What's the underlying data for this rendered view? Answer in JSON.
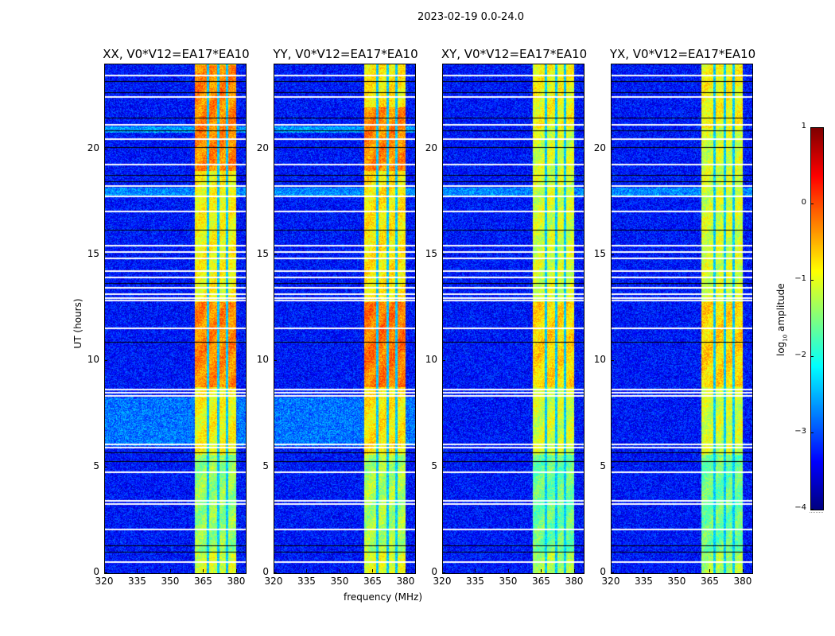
{
  "chart_data": {
    "type": "heatmap",
    "suptitle": "2023-02-19 0.0-24.0",
    "xlabel": "frequency (MHz)",
    "ylabel": "UT (hours)",
    "xlim": [
      320,
      384
    ],
    "ylim": [
      0,
      24
    ],
    "xticks": [
      "320",
      "335",
      "350",
      "365",
      "380"
    ],
    "xtick_values": [
      320,
      335,
      350,
      365,
      380
    ],
    "yticks": [
      "0",
      "5",
      "10",
      "15",
      "20"
    ],
    "ytick_values": [
      0,
      5,
      10,
      15,
      20
    ],
    "panels": [
      {
        "title": "XX, V0*V12=EA17*EA10",
        "band_level": -0.9
      },
      {
        "title": "YY, V0*V12=EA17*EA10",
        "band_level": -0.8
      },
      {
        "title": "XY, V0*V12=EA17*EA10",
        "band_level": -1.1
      },
      {
        "title": "YX, V0*V12=EA17*EA10",
        "band_level": -1.1
      }
    ],
    "background_level": -3.3,
    "rfi_band_mhz": [
      360.5,
      379.5
    ],
    "band_gaps_mhz": [
      366.5,
      371.5,
      375.5
    ],
    "flagged_hours_white": [
      0.55,
      2.1,
      3.3,
      3.45,
      4.8,
      5.95,
      6.1,
      8.4,
      8.55,
      8.7,
      11.6,
      12.9,
      13.0,
      13.2,
      13.5,
      14.0,
      14.3,
      14.9,
      15.2,
      15.5,
      17.1,
      17.8,
      18.3,
      19.3,
      20.5,
      21.2,
      22.5,
      23.5
    ],
    "flagged_hours_black": [
      1.0,
      1.3,
      5.3,
      5.7,
      10.9,
      13.7,
      16.2,
      18.5,
      18.8,
      20.1,
      20.9,
      21.5,
      22.7,
      23.2
    ],
    "colorbar": {
      "label": "log10 amplitude",
      "label_main": "log",
      "label_sub": "10",
      "label_rest": " amplitude",
      "range": [
        -4,
        1
      ],
      "ticks": [
        "1",
        "0",
        "−1",
        "−2",
        "−3",
        "−4"
      ],
      "tick_values": [
        1,
        0,
        -1,
        -2,
        -3,
        -4
      ],
      "colormap": "jet"
    }
  }
}
